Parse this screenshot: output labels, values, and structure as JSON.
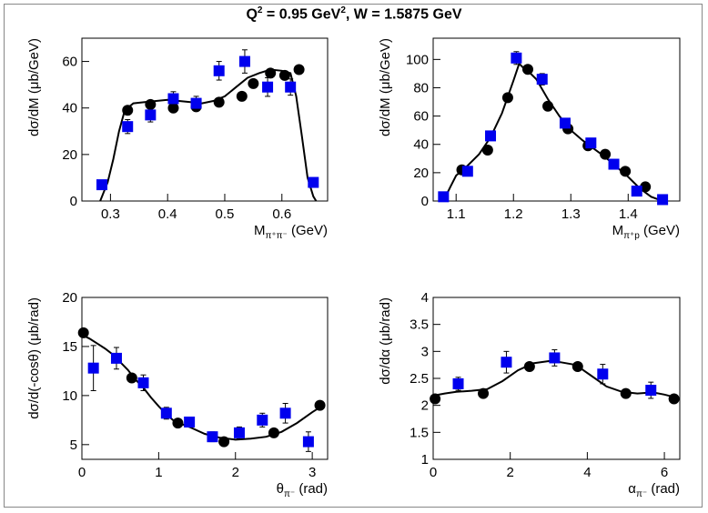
{
  "title": {
    "pre": "Q",
    "sup1": "2",
    "mid": " =  0.95 GeV",
    "sup2": "2",
    "post": ", W = 1.5875 GeV"
  },
  "colors": {
    "model": "#000000",
    "data": "#0000ee",
    "points": "#000000",
    "frame": "#888888"
  },
  "chart_data": [
    {
      "type": "scatter",
      "xlabel": "M",
      "xlabel_sub": "π⁺π⁻",
      "xlabel_unit": " (GeV)",
      "ylabel": "dσ/dM (μb/GeV)",
      "xlim": [
        0.25,
        0.68
      ],
      "ylim": [
        0,
        70
      ],
      "xticks": [
        0.3,
        0.4,
        0.5,
        0.6
      ],
      "yticks": [
        0,
        20,
        40,
        60
      ],
      "xtick_labels": [
        "0.3",
        "0.4",
        "0.5",
        "0.6"
      ],
      "ytick_labels": [
        "0",
        "20",
        "40",
        "60"
      ],
      "model_curve": {
        "x": [
          0.282,
          0.295,
          0.305,
          0.315,
          0.325,
          0.34,
          0.36,
          0.38,
          0.4,
          0.42,
          0.44,
          0.46,
          0.48,
          0.5,
          0.52,
          0.54,
          0.56,
          0.58,
          0.6,
          0.615,
          0.625,
          0.635,
          0.645,
          0.655,
          0.66
        ],
        "y": [
          0,
          8,
          18,
          30,
          39,
          42,
          42.5,
          43,
          43.5,
          43,
          42.5,
          42,
          43,
          45,
          49,
          53,
          55,
          56.5,
          56,
          55,
          45,
          28,
          10,
          2,
          0
        ]
      },
      "data_points": {
        "x": [
          0.285,
          0.33,
          0.37,
          0.41,
          0.45,
          0.49,
          0.535,
          0.575,
          0.615,
          0.655
        ],
        "y": [
          7,
          32,
          37,
          44,
          42,
          56,
          60,
          49,
          49,
          8
        ],
        "err": [
          1.5,
          3,
          3,
          3,
          3,
          4,
          5,
          4,
          3.5,
          1
        ]
      },
      "model_points": {
        "x": [
          0.33,
          0.37,
          0.41,
          0.45,
          0.49,
          0.53,
          0.55,
          0.58,
          0.605,
          0.63
        ],
        "y": [
          39,
          41.5,
          40,
          40.5,
          42.5,
          45,
          50.5,
          55,
          54,
          56.5
        ]
      }
    },
    {
      "type": "scatter",
      "xlabel": "M",
      "xlabel_sub": "π⁺p",
      "xlabel_unit": " (GeV)",
      "ylabel": "dσ/dM (μb/GeV)",
      "xlim": [
        1.06,
        1.49
      ],
      "ylim": [
        0,
        115
      ],
      "xticks": [
        1.1,
        1.2,
        1.3,
        1.4
      ],
      "yticks": [
        0,
        20,
        40,
        60,
        80,
        100
      ],
      "xtick_labels": [
        "1.1",
        "1.2",
        "1.3",
        "1.4"
      ],
      "ytick_labels": [
        "0",
        "20",
        "40",
        "60",
        "80",
        "100"
      ],
      "model_curve": {
        "x": [
          1.078,
          1.09,
          1.1,
          1.12,
          1.14,
          1.16,
          1.18,
          1.2,
          1.21,
          1.22,
          1.23,
          1.24,
          1.26,
          1.28,
          1.3,
          1.32,
          1.34,
          1.36,
          1.38,
          1.4,
          1.42,
          1.44,
          1.46
        ],
        "y": [
          0,
          10,
          18,
          25,
          33,
          45,
          62,
          85,
          97,
          93,
          90,
          86,
          72,
          60,
          50,
          43,
          37,
          31,
          24,
          17,
          9,
          3,
          0
        ]
      },
      "data_points": {
        "x": [
          1.078,
          1.12,
          1.16,
          1.205,
          1.25,
          1.29,
          1.335,
          1.375,
          1.415,
          1.46
        ],
        "y": [
          3,
          21,
          46,
          101,
          86,
          55,
          41,
          26,
          7,
          1
        ],
        "err": [
          0.8,
          2,
          3,
          4.5,
          4,
          3,
          2.5,
          2,
          1.2,
          0.5
        ]
      },
      "model_points": {
        "x": [
          1.11,
          1.155,
          1.19,
          1.225,
          1.26,
          1.295,
          1.33,
          1.36,
          1.395,
          1.43
        ],
        "y": [
          22,
          36,
          73,
          93,
          67,
          51,
          39,
          33,
          21,
          10
        ]
      }
    },
    {
      "type": "scatter",
      "xlabel": "θ",
      "xlabel_sub": "π⁻",
      "xlabel_unit": " (rad)",
      "ylabel": "dσ/d(-cosθ) (μb/rad)",
      "xlim": [
        0,
        3.2
      ],
      "ylim": [
        3.5,
        20
      ],
      "xticks": [
        0,
        1,
        2,
        3
      ],
      "yticks": [
        5,
        10,
        15,
        20
      ],
      "xtick_labels": [
        "0",
        "1",
        "2",
        "3"
      ],
      "ytick_labels": [
        "5",
        "10",
        "15",
        "20"
      ],
      "model_curve": {
        "x": [
          0.0,
          0.1,
          0.2,
          0.3,
          0.4,
          0.5,
          0.6,
          0.7,
          0.8,
          0.9,
          1.0,
          1.1,
          1.2,
          1.4,
          1.6,
          1.8,
          2.0,
          2.2,
          2.4,
          2.6,
          2.8,
          3.0,
          3.14
        ],
        "y": [
          16.2,
          15.8,
          15.3,
          14.8,
          14.2,
          13.4,
          12.6,
          11.6,
          10.8,
          9.8,
          8.9,
          8.1,
          7.4,
          6.8,
          6.1,
          5.7,
          5.5,
          5.6,
          5.8,
          6.3,
          7.2,
          8.3,
          9.0
        ]
      },
      "data_points": {
        "x": [
          0.15,
          0.45,
          0.8,
          1.1,
          1.4,
          1.7,
          2.05,
          2.35,
          2.65,
          2.95
        ],
        "y": [
          12.8,
          13.8,
          11.3,
          8.2,
          7.3,
          5.8,
          6.2,
          7.5,
          8.2,
          5.3
        ],
        "err": [
          2.3,
          1.1,
          0.8,
          0.6,
          0.5,
          0.5,
          0.6,
          0.7,
          1.0,
          1.0
        ]
      },
      "model_points": {
        "x": [
          0.02,
          0.65,
          1.25,
          1.85,
          2.5,
          3.1
        ],
        "y": [
          16.4,
          11.8,
          7.2,
          5.3,
          6.2,
          9.0
        ]
      }
    },
    {
      "type": "scatter",
      "xlabel": "α",
      "xlabel_sub": "π⁻",
      "xlabel_unit": " (rad)",
      "ylabel": "dσ/dα (μb/rad)",
      "xlim": [
        0,
        6.4
      ],
      "ylim": [
        1,
        4
      ],
      "xticks": [
        0,
        2,
        4,
        6
      ],
      "yticks": [
        1,
        1.5,
        2,
        2.5,
        3,
        3.5,
        4
      ],
      "xtick_labels": [
        "0",
        "2",
        "4",
        "6"
      ],
      "ytick_labels": [
        "1",
        "1.5",
        "2",
        "2.5",
        "3",
        "3.5",
        "4"
      ],
      "model_curve": {
        "x": [
          0.0,
          0.3,
          0.6,
          1.0,
          1.4,
          1.8,
          2.2,
          2.6,
          3.0,
          3.3,
          3.7,
          4.1,
          4.5,
          4.9,
          5.3,
          5.7,
          6.0,
          6.28
        ],
        "y": [
          2.18,
          2.22,
          2.25,
          2.27,
          2.3,
          2.45,
          2.65,
          2.78,
          2.82,
          2.8,
          2.75,
          2.55,
          2.35,
          2.25,
          2.22,
          2.24,
          2.2,
          2.15
        ]
      },
      "data_points": {
        "x": [
          0.65,
          1.9,
          3.15,
          4.4,
          5.65
        ],
        "y": [
          2.4,
          2.8,
          2.88,
          2.58,
          2.28
        ],
        "err": [
          0.12,
          0.2,
          0.15,
          0.18,
          0.15
        ]
      },
      "model_points": {
        "x": [
          0.05,
          1.3,
          2.5,
          3.75,
          5.0,
          6.25
        ],
        "y": [
          2.12,
          2.22,
          2.72,
          2.72,
          2.22,
          2.12
        ]
      }
    }
  ]
}
